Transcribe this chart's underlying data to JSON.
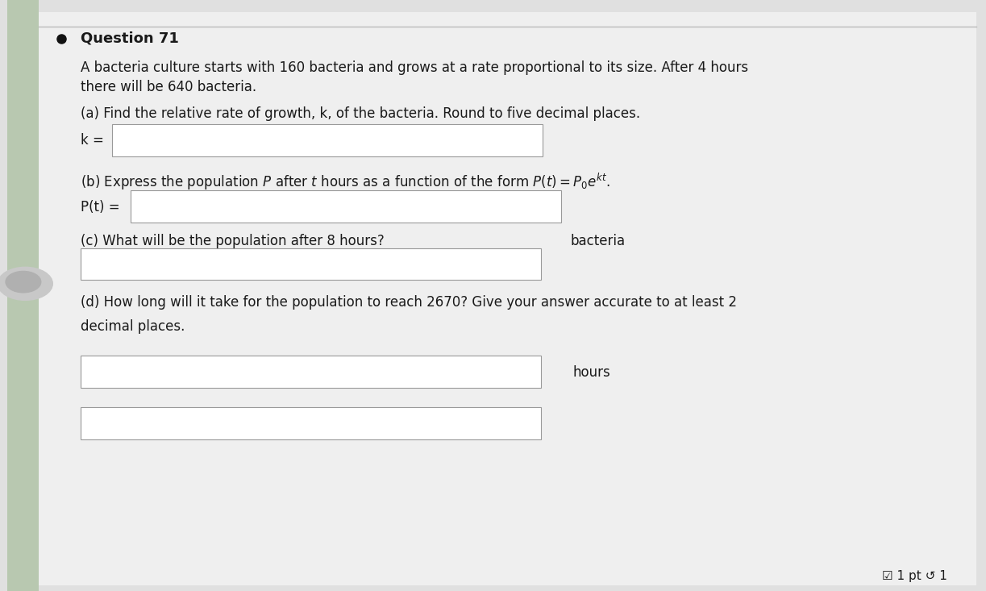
{
  "bg_color": "#e0e0e0",
  "paper_color": "#efefef",
  "left_strip_color": "#b8c8b0",
  "title": "Question 71",
  "problem_text_line1": "A bacteria culture starts with 160 bacteria and grows at a rate proportional to its size. After 4 hours",
  "problem_text_line2": "there will be 640 bacteria.",
  "part_a_text": "(a) Find the relative rate of growth, k, of the bacteria. Round to five decimal places.",
  "k_eq": "k =",
  "part_b_text": "(b) Express the population $P$ after $t$ hours as a function of the form $P(t) = P_0e^{kt}$.",
  "Pt_eq": "P(t) =",
  "part_c_text": "(c) What will be the population after 8 hours?",
  "bacteria_label": "bacteria",
  "part_d_text1": "(d) How long will it take for the population to reach 2670? Give your answer accurate to at least 2",
  "part_d_text2": "decimal places.",
  "hours_label": "hours",
  "pt_label": "☑ 1 pt ↺ 1",
  "text_color": "#1a1a1a",
  "box_facecolor": "#ffffff",
  "box_edgecolor": "#999999",
  "font_size_title": 13,
  "font_size_body": 12,
  "bullet_color": "#111111",
  "line_color": "#bbbbbb"
}
